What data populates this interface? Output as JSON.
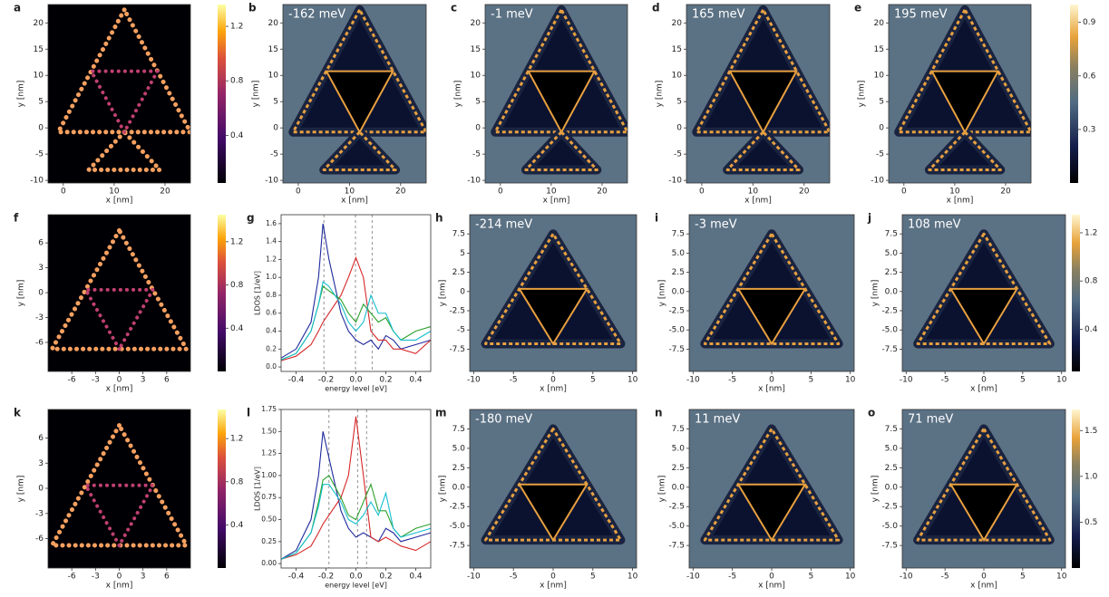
{
  "chart_data": [
    {
      "label": "a",
      "type": "heatmap",
      "colormap": "inferno",
      "xlim": [
        -3,
        25
      ],
      "ylim": [
        -10.5,
        23.5
      ],
      "xticks": [
        0,
        10,
        20
      ],
      "yticks": [
        -10,
        -5,
        0,
        5,
        10,
        15,
        20
      ],
      "xlabel": "x [nm]",
      "ylabel": "y [nm]",
      "colorbar": {
        "lim": [
          0.05,
          1.36
        ],
        "ticks": [
          0.4,
          0.8,
          1.2
        ]
      }
    },
    {
      "label": "b",
      "type": "heatmap",
      "colormap": "stm",
      "annotation": "-162 meV",
      "xlim": [
        -3,
        25
      ],
      "ylim": [
        -10.5,
        23.5
      ],
      "xticks": [
        0,
        10,
        20
      ],
      "yticks": [
        -10,
        -5,
        0,
        5,
        10,
        15,
        20
      ],
      "xlabel": "x [nm]",
      "ylabel": "y [nm]"
    },
    {
      "label": "c",
      "type": "heatmap",
      "colormap": "stm",
      "annotation": "-1 meV",
      "xlim": [
        -3,
        25
      ],
      "ylim": [
        -10.5,
        23.5
      ],
      "xticks": [
        0,
        10,
        20
      ],
      "yticks": [
        -10,
        -5,
        0,
        5,
        10,
        15,
        20
      ],
      "xlabel": "x [nm]",
      "ylabel": "y [nm]"
    },
    {
      "label": "d",
      "type": "heatmap",
      "colormap": "stm",
      "annotation": "165 meV",
      "xlim": [
        -3,
        25
      ],
      "ylim": [
        -10.5,
        23.5
      ],
      "xticks": [
        0,
        10,
        20
      ],
      "yticks": [
        -10,
        -5,
        0,
        5,
        10,
        15,
        20
      ],
      "xlabel": "x [nm]",
      "ylabel": "y [nm]"
    },
    {
      "label": "e",
      "type": "heatmap",
      "colormap": "stm",
      "annotation": "195 meV",
      "xlim": [
        -3,
        25
      ],
      "ylim": [
        -10.5,
        23.5
      ],
      "xticks": [
        0,
        10,
        20
      ],
      "yticks": [
        -10,
        -5,
        0,
        5,
        10,
        15,
        20
      ],
      "xlabel": "x [nm]",
      "ylabel": "y [nm]",
      "colorbar": {
        "lim": [
          0,
          1.0
        ],
        "ticks": [
          0.3,
          0.6,
          0.9
        ]
      }
    },
    {
      "label": "f",
      "type": "heatmap",
      "colormap": "inferno",
      "xlim": [
        -9,
        9
      ],
      "ylim": [
        -9.5,
        9.4
      ],
      "xticks": [
        -6,
        -3,
        0,
        3,
        6
      ],
      "yticks": [
        -6,
        -3,
        0,
        3,
        6
      ],
      "xlabel": "x [nm]",
      "ylabel": "y [nm]",
      "colorbar": {
        "lim": [
          0,
          1.45
        ],
        "ticks": [
          0.4,
          0.8,
          1.2
        ]
      }
    },
    {
      "label": "g",
      "type": "line",
      "xlim": [
        -0.5,
        0.5
      ],
      "ylim": [
        -0.05,
        1.7
      ],
      "xticks": [
        -0.4,
        -0.2,
        {
          "value": 0,
          "label": "0.0"
        },
        0.2,
        0.4
      ],
      "yticks": [
        {
          "value": 0,
          "label": "0.0"
        },
        0.2,
        0.4,
        0.6,
        0.8,
        {
          "value": 1,
          "label": "1.0"
        },
        1.2,
        1.4,
        1.6
      ],
      "xlabel": "energy level [eV]",
      "ylabel": "LDOS [1/eV]",
      "vlines": [
        -0.214,
        -0.003,
        0.108
      ],
      "x": [
        -0.5,
        -0.4,
        -0.3,
        -0.25,
        -0.22,
        -0.18,
        -0.1,
        -0.05,
        0,
        0.05,
        0.1,
        0.15,
        0.2,
        0.25,
        0.3,
        0.4,
        0.5
      ],
      "series": [
        {
          "color": "#1f2a9c",
          "values": [
            0.1,
            0.2,
            0.5,
            1.0,
            1.6,
            1.2,
            0.6,
            0.4,
            0.3,
            0.25,
            0.3,
            0.2,
            0.35,
            0.3,
            0.2,
            0.25,
            0.3
          ]
        },
        {
          "color": "#d62728",
          "values": [
            0.07,
            0.12,
            0.25,
            0.4,
            0.5,
            0.6,
            0.8,
            1.0,
            1.22,
            1.0,
            0.4,
            0.3,
            0.3,
            0.2,
            0.2,
            0.15,
            0.3
          ]
        },
        {
          "color": "#2ca02c",
          "values": [
            0.08,
            0.15,
            0.4,
            0.7,
            0.9,
            0.85,
            0.75,
            0.6,
            0.5,
            0.7,
            0.6,
            0.5,
            0.55,
            0.4,
            0.3,
            0.4,
            0.45
          ]
        },
        {
          "color": "#17becf",
          "values": [
            0.08,
            0.15,
            0.4,
            0.7,
            0.95,
            0.9,
            0.7,
            0.5,
            0.4,
            0.5,
            0.8,
            0.6,
            0.6,
            0.4,
            0.3,
            0.3,
            0.4
          ]
        }
      ]
    },
    {
      "label": "h",
      "type": "heatmap",
      "colormap": "stm",
      "annotation": "-214 meV",
      "xlim": [
        -10.5,
        10.5
      ],
      "ylim": [
        -10.4,
        10
      ],
      "xticks": [
        -10,
        -5,
        0,
        5,
        10
      ],
      "yticks": [
        -7.5,
        -5.0,
        -2.5,
        0.0,
        2.5,
        5.0,
        7.5
      ],
      "xlabel": "x [nm]",
      "ylabel": "y [nm]"
    },
    {
      "label": "i",
      "type": "heatmap",
      "colormap": "stm",
      "annotation": "-3 meV",
      "xlim": [
        -10.5,
        10.5
      ],
      "ylim": [
        -10.4,
        10
      ],
      "xticks": [
        -10,
        -5,
        0,
        5,
        10
      ],
      "yticks": [
        -7.5,
        {
          "value": -5,
          "label": "-5.0"
        },
        -2.5,
        {
          "value": 0,
          "label": "0.0"
        },
        2.5,
        {
          "value": 5,
          "label": "5.0"
        },
        7.5
      ],
      "xlabel": "x [nm]",
      "ylabel": "y [nm]"
    },
    {
      "label": "j",
      "type": "heatmap",
      "colormap": "stm",
      "annotation": "108 meV",
      "xlim": [
        -10.5,
        10.5
      ],
      "ylim": [
        -10.4,
        10
      ],
      "xticks": [
        -10,
        -5,
        0,
        5,
        10
      ],
      "yticks": [
        -7.5,
        {
          "value": -5,
          "label": "-5.0"
        },
        -2.5,
        {
          "value": 0,
          "label": "0.0"
        },
        2.5,
        {
          "value": 5,
          "label": "5.0"
        },
        7.5
      ],
      "xlabel": "x [nm]",
      "ylabel": "y [nm]",
      "colorbar": {
        "lim": [
          0.05,
          1.35
        ],
        "ticks": [
          0.4,
          0.8,
          1.2
        ]
      }
    },
    {
      "label": "k",
      "type": "heatmap",
      "colormap": "inferno",
      "xlim": [
        -9,
        9
      ],
      "ylim": [
        -9.5,
        9.4
      ],
      "xticks": [
        -6,
        -3,
        0,
        3,
        6
      ],
      "yticks": [
        -6,
        -3,
        0,
        3,
        6
      ],
      "xlabel": "x [nm]",
      "ylabel": "y [nm]",
      "colorbar": {
        "lim": [
          0,
          1.47
        ],
        "ticks": [
          0.4,
          0.8,
          1.2
        ]
      }
    },
    {
      "label": "l",
      "type": "line",
      "xlim": [
        -0.5,
        0.5
      ],
      "ylim": [
        -0.05,
        1.75
      ],
      "xticks": [
        -0.4,
        -0.2,
        {
          "value": 0,
          "label": "0.0"
        },
        0.2,
        0.4
      ],
      "yticks": [
        {
          "value": 0,
          "label": "0.00"
        },
        0.25,
        {
          "value": 0.5,
          "label": "0.50"
        },
        0.75,
        {
          "value": 1,
          "label": "1.00"
        },
        1.25,
        {
          "value": 1.5,
          "label": "1.50"
        },
        1.75
      ],
      "xlabel": "energy level [eV]",
      "ylabel": "LDOS [1/eV]",
      "vlines": [
        -0.18,
        0.011,
        0.071
      ],
      "x": [
        -0.5,
        -0.4,
        -0.3,
        -0.25,
        -0.22,
        -0.18,
        -0.1,
        -0.05,
        0,
        0.05,
        0.1,
        0.15,
        0.2,
        0.25,
        0.3,
        0.4,
        0.5
      ],
      "series": [
        {
          "color": "#1f2a9c",
          "values": [
            0.05,
            0.15,
            0.5,
            1.0,
            1.5,
            1.2,
            0.6,
            0.4,
            0.3,
            0.35,
            0.3,
            0.25,
            0.4,
            0.35,
            0.25,
            0.3,
            0.35
          ]
        },
        {
          "color": "#d62728",
          "values": [
            0.05,
            0.1,
            0.2,
            0.35,
            0.45,
            0.55,
            0.75,
            1.0,
            1.67,
            1.0,
            0.3,
            0.25,
            0.3,
            0.25,
            0.2,
            0.15,
            0.25
          ]
        },
        {
          "color": "#2ca02c",
          "values": [
            0.05,
            0.12,
            0.35,
            0.7,
            0.95,
            1.0,
            0.75,
            0.55,
            0.5,
            0.7,
            0.9,
            0.6,
            0.6,
            0.4,
            0.3,
            0.4,
            0.45
          ]
        },
        {
          "color": "#17becf",
          "values": [
            0.05,
            0.12,
            0.35,
            0.65,
            0.9,
            0.9,
            0.7,
            0.5,
            0.45,
            0.55,
            0.7,
            0.55,
            0.8,
            0.4,
            0.3,
            0.35,
            0.4
          ]
        }
      ]
    },
    {
      "label": "m",
      "type": "heatmap",
      "colormap": "stm",
      "annotation": "-180 meV",
      "xlim": [
        -10.5,
        10.5
      ],
      "ylim": [
        -10.4,
        10
      ],
      "xticks": [
        -10,
        -5,
        0,
        5,
        10
      ],
      "yticks": [
        -7.5,
        {
          "value": -5,
          "label": "-5.0"
        },
        -2.5,
        {
          "value": 0,
          "label": "0.0"
        },
        2.5,
        {
          "value": 5,
          "label": "5.0"
        },
        7.5
      ],
      "xlabel": "x [nm]",
      "ylabel": "y [nm]"
    },
    {
      "label": "n",
      "type": "heatmap",
      "colormap": "stm",
      "annotation": "11 meV",
      "xlim": [
        -10.5,
        10.5
      ],
      "ylim": [
        -10.4,
        10
      ],
      "xticks": [
        -10,
        -5,
        0,
        5,
        10
      ],
      "yticks": [
        -7.5,
        {
          "value": -5,
          "label": "-5.0"
        },
        -2.5,
        {
          "value": 0,
          "label": "0.0"
        },
        2.5,
        {
          "value": 5,
          "label": "5.0"
        },
        7.5
      ],
      "xlabel": "x [nm]",
      "ylabel": "y [nm]"
    },
    {
      "label": "o",
      "type": "heatmap",
      "colormap": "stm",
      "annotation": "71 meV",
      "xlim": [
        -10.5,
        10.5
      ],
      "ylim": [
        -10.4,
        10
      ],
      "xticks": [
        -10,
        -5,
        0,
        5,
        10
      ],
      "yticks": [
        -7.5,
        {
          "value": -5,
          "label": "-5.0"
        },
        -2.5,
        {
          "value": 0,
          "label": "0.0"
        },
        2.5,
        {
          "value": 5,
          "label": "5.0"
        },
        7.5
      ],
      "xlabel": "x [nm]",
      "ylabel": "y [nm]",
      "colorbar": {
        "lim": [
          0,
          1.73
        ],
        "ticks": [
          0.5,
          {
            "value": 1,
            "label": "1.0"
          },
          1.5
        ]
      }
    }
  ]
}
